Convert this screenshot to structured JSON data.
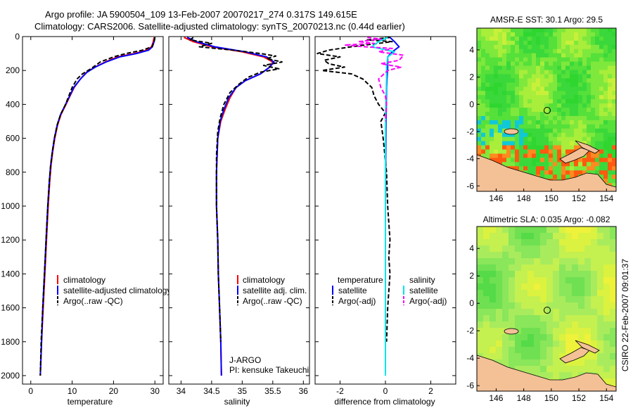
{
  "figure": {
    "title_line1": "Argo profile: JA 5900504_109 13-Feb-2007 20070217_274 0.317S 149.615E",
    "title_line2": "Climatology: CARS2006. Satellite-adjusted climatology: synTS_20070213.nc (0.44d earlier)",
    "credit": "CSIRO 22-Feb-2007 09:01:37",
    "colors": {
      "climatology": "#ff0000",
      "satellite": "#0000ff",
      "argo": "#000000",
      "salinity_satellite": "#00e5ee",
      "salinity_argo": "#ff00ff",
      "land": "#f4c096"
    }
  },
  "chart_data": [
    {
      "type": "line",
      "id": "temperature",
      "xlabel": "temperature",
      "xlim": [
        -2,
        32
      ],
      "xticks": [
        0,
        10,
        20,
        30
      ],
      "ylim": [
        0,
        2050
      ],
      "yticks": [
        0,
        200,
        400,
        600,
        800,
        1000,
        1200,
        1400,
        1600,
        1800,
        2000
      ],
      "legend": [
        "climatology",
        "satellite-adjusted climatology",
        "Argo(..raw -QC)"
      ],
      "series": [
        {
          "name": "climatology",
          "color": "#ff0000",
          "points": [
            [
              29.8,
              5
            ],
            [
              29.6,
              30
            ],
            [
              29.2,
              60
            ],
            [
              28,
              80
            ],
            [
              25,
              100
            ],
            [
              21,
              120
            ],
            [
              18,
              150
            ],
            [
              15.5,
              180
            ],
            [
              13.5,
              210
            ],
            [
              12,
              250
            ],
            [
              10.5,
              300
            ],
            [
              9.5,
              350
            ],
            [
              8.5,
              400
            ],
            [
              7.3,
              460
            ],
            [
              6.5,
              520
            ],
            [
              5.8,
              600
            ],
            [
              5.3,
              680
            ],
            [
              4.9,
              760
            ],
            [
              4.6,
              850
            ],
            [
              4.2,
              1000
            ],
            [
              3.8,
              1200
            ],
            [
              3.4,
              1400
            ],
            [
              3.0,
              1600
            ],
            [
              2.6,
              1800
            ],
            [
              2.3,
              2000
            ]
          ]
        },
        {
          "name": "satellite",
          "color": "#0000ff",
          "points": [
            [
              30.0,
              5
            ],
            [
              29.8,
              30
            ],
            [
              29.4,
              60
            ],
            [
              28.5,
              80
            ],
            [
              25.5,
              100
            ],
            [
              21.5,
              120
            ],
            [
              18.2,
              150
            ],
            [
              15.6,
              180
            ],
            [
              13.6,
              210
            ],
            [
              12,
              250
            ],
            [
              10.4,
              300
            ],
            [
              9.4,
              350
            ],
            [
              8.4,
              400
            ],
            [
              7.2,
              460
            ],
            [
              6.4,
              520
            ],
            [
              5.7,
              600
            ],
            [
              5.2,
              680
            ],
            [
              4.8,
              760
            ],
            [
              4.5,
              850
            ],
            [
              4.1,
              1000
            ],
            [
              3.7,
              1200
            ],
            [
              3.3,
              1400
            ],
            [
              2.9,
              1600
            ],
            [
              2.6,
              1800
            ],
            [
              2.3,
              2000
            ]
          ]
        },
        {
          "name": "Argo(..raw -QC)",
          "color": "#000000",
          "dashed": true,
          "points": [
            [
              30.0,
              5
            ],
            [
              29.8,
              30
            ],
            [
              29.3,
              60
            ],
            [
              27,
              80
            ],
            [
              23,
              100
            ],
            [
              20,
              120
            ],
            [
              16.8,
              150
            ],
            [
              14.5,
              190
            ],
            [
              12.5,
              220
            ],
            [
              11.2,
              250
            ],
            [
              10,
              300
            ],
            [
              9.2,
              350
            ],
            [
              8.4,
              400
            ],
            [
              7.2,
              460
            ],
            [
              6.4,
              520
            ],
            [
              5.7,
              600
            ],
            [
              5.2,
              680
            ],
            [
              4.8,
              760
            ],
            [
              4.5,
              850
            ],
            [
              4.1,
              1000
            ],
            [
              3.7,
              1200
            ],
            [
              3.3,
              1400
            ],
            [
              2.9,
              1600
            ],
            [
              2.5,
              1800
            ],
            [
              2.3,
              2000
            ]
          ]
        }
      ]
    },
    {
      "type": "line",
      "id": "salinity",
      "xlabel": "salinity",
      "xlim": [
        33.8,
        36.1
      ],
      "xticks": [
        34,
        34.5,
        35,
        35.5,
        36
      ],
      "ylim": [
        0,
        2050
      ],
      "legend": [
        "climatology",
        "satellite adj. clim.",
        "Argo(..raw -QC)"
      ],
      "annotation": [
        "J-ARGO",
        "PI: kensuke Takeuchi"
      ],
      "series": [
        {
          "name": "climatology",
          "color": "#ff0000",
          "points": [
            [
              34.05,
              5
            ],
            [
              34.2,
              30
            ],
            [
              34.5,
              60
            ],
            [
              35.0,
              90
            ],
            [
              35.35,
              120
            ],
            [
              35.5,
              150
            ],
            [
              35.45,
              180
            ],
            [
              35.3,
              220
            ],
            [
              35.05,
              260
            ],
            [
              34.9,
              300
            ],
            [
              34.8,
              360
            ],
            [
              34.72,
              430
            ],
            [
              34.65,
              500
            ],
            [
              34.6,
              600
            ],
            [
              34.58,
              800
            ],
            [
              34.58,
              1000
            ],
            [
              34.6,
              1200
            ],
            [
              34.61,
              1400
            ],
            [
              34.63,
              1600
            ],
            [
              34.65,
              1800
            ],
            [
              34.66,
              2000
            ]
          ]
        },
        {
          "name": "satellite",
          "color": "#0000ff",
          "points": [
            [
              34.1,
              5
            ],
            [
              34.25,
              30
            ],
            [
              34.55,
              60
            ],
            [
              35.05,
              90
            ],
            [
              35.4,
              120
            ],
            [
              35.52,
              150
            ],
            [
              35.45,
              180
            ],
            [
              35.3,
              220
            ],
            [
              35.05,
              260
            ],
            [
              34.9,
              300
            ],
            [
              34.78,
              360
            ],
            [
              34.7,
              430
            ],
            [
              34.64,
              500
            ],
            [
              34.6,
              600
            ],
            [
              34.58,
              800
            ],
            [
              34.58,
              1000
            ],
            [
              34.6,
              1200
            ],
            [
              34.61,
              1400
            ],
            [
              34.63,
              1600
            ],
            [
              34.65,
              1800
            ],
            [
              34.66,
              2000
            ]
          ]
        },
        {
          "name": "Argo(..raw -QC)",
          "color": "#000000",
          "dashed": true,
          "points": [
            [
              34.2,
              5
            ],
            [
              34.15,
              20
            ],
            [
              34.5,
              40
            ],
            [
              34.3,
              60
            ],
            [
              34.85,
              80
            ],
            [
              35.3,
              100
            ],
            [
              35.55,
              115
            ],
            [
              35.4,
              130
            ],
            [
              35.65,
              150
            ],
            [
              35.35,
              170
            ],
            [
              35.6,
              190
            ],
            [
              35.3,
              210
            ],
            [
              35.1,
              240
            ],
            [
              34.95,
              280
            ],
            [
              34.8,
              330
            ],
            [
              34.7,
              400
            ],
            [
              34.64,
              480
            ],
            [
              34.6,
              560
            ],
            [
              34.58,
              700
            ],
            [
              34.58,
              1000
            ],
            [
              34.6,
              1200
            ],
            [
              34.61,
              1400
            ],
            [
              34.63,
              1600
            ],
            [
              34.65,
              1800
            ]
          ]
        }
      ]
    },
    {
      "type": "line",
      "id": "difference",
      "xlabel": "difference from climatology",
      "xlim": [
        -3.1,
        3.1
      ],
      "xticks": [
        -2,
        0,
        2
      ],
      "ylim": [
        0,
        2050
      ],
      "legend_titles": [
        "temperature",
        "salinity"
      ],
      "legend": [
        "satellite",
        "Argo(-adj)",
        "satellite",
        "Argo(-adj)"
      ],
      "series": [
        {
          "name": "temperature satellite",
          "color": "#0000ff",
          "points": [
            [
              0.2,
              5
            ],
            [
              0.4,
              30
            ],
            [
              0.6,
              60
            ],
            [
              0.3,
              90
            ],
            [
              0.1,
              120
            ],
            [
              0.1,
              180
            ],
            [
              0.05,
              300
            ],
            [
              0.02,
              600
            ],
            [
              0,
              1000
            ],
            [
              0,
              1500
            ],
            [
              0,
              1900
            ],
            [
              0,
              2000
            ]
          ]
        },
        {
          "name": "temperature Argo(-adj)",
          "color": "#000000",
          "dashed": true,
          "points": [
            [
              0.2,
              5
            ],
            [
              -0.8,
              20
            ],
            [
              0.3,
              30
            ],
            [
              -1.5,
              60
            ],
            [
              -2.5,
              80
            ],
            [
              -3,
              100
            ],
            [
              -2,
              120
            ],
            [
              -2.7,
              140
            ],
            [
              -2.5,
              160
            ],
            [
              -1.8,
              180
            ],
            [
              -2.8,
              200
            ],
            [
              -1.5,
              220
            ],
            [
              -1.0,
              250
            ],
            [
              -0.6,
              300
            ],
            [
              -0.5,
              350
            ],
            [
              -0.3,
              400
            ],
            [
              0,
              450
            ],
            [
              -0.2,
              500
            ],
            [
              -0.1,
              600
            ],
            [
              0.05,
              800
            ],
            [
              0.1,
              1000
            ],
            [
              0.2,
              1200
            ],
            [
              0.15,
              1300
            ],
            [
              0.2,
              1400
            ],
            [
              0.1,
              1600
            ],
            [
              0.05,
              1800
            ]
          ]
        },
        {
          "name": "salinity satellite",
          "color": "#00e5ee",
          "points": [
            [
              0.1,
              5
            ],
            [
              -0.3,
              30
            ],
            [
              -0.6,
              60
            ],
            [
              0.4,
              90
            ],
            [
              0.1,
              120
            ],
            [
              0.05,
              180
            ],
            [
              0.05,
              250
            ],
            [
              0.02,
              400
            ],
            [
              0,
              600
            ],
            [
              0,
              1000
            ],
            [
              0,
              1500
            ],
            [
              0,
              1900
            ],
            [
              0,
              2000
            ]
          ]
        },
        {
          "name": "salinity Argo(-adj)",
          "color": "#ff00ff",
          "dashed": true,
          "points": [
            [
              -0.8,
              5
            ],
            [
              -0.2,
              15
            ],
            [
              -1.2,
              30
            ],
            [
              -0.5,
              40
            ],
            [
              -1.8,
              50
            ],
            [
              -0.9,
              60
            ],
            [
              0.3,
              70
            ],
            [
              -0.3,
              90
            ],
            [
              0.8,
              110
            ],
            [
              0.6,
              140
            ],
            [
              -0.2,
              160
            ],
            [
              0.7,
              180
            ],
            [
              0.1,
              200
            ],
            [
              -0.3,
              250
            ],
            [
              -0.2,
              300
            ],
            [
              0,
              350
            ],
            [
              0.05,
              400
            ],
            [
              0,
              500
            ]
          ]
        }
      ]
    },
    {
      "type": "heatmap",
      "id": "sst-map",
      "title": "AMSR-E SST: 30.1  Argo: 29.5",
      "xlim": [
        144.6,
        154.7
      ],
      "ylim": [
        -6.4,
        5.6
      ],
      "xticks": [
        146,
        148,
        150,
        152,
        154
      ],
      "yticks": [
        -6,
        -4,
        -2,
        0,
        2,
        4
      ],
      "profile_location": [
        149.615,
        -0.317
      ]
    },
    {
      "type": "heatmap",
      "id": "sla-map",
      "title": "Altimetric SLA: 0.035  Argo: -0.082",
      "xlim": [
        144.6,
        154.7
      ],
      "ylim": [
        -6.4,
        5.6
      ],
      "xticks": [
        146,
        148,
        150,
        152,
        154
      ],
      "yticks": [
        -6,
        -4,
        -2,
        0,
        2,
        4
      ],
      "profile_location": [
        149.615,
        -0.317
      ]
    }
  ]
}
